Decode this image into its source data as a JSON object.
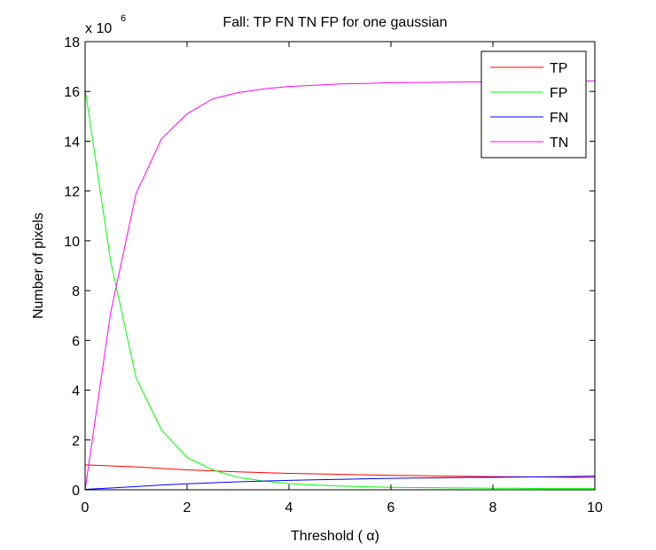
{
  "chart_data": {
    "type": "line",
    "title": "Fall: TP FN TN FP for one gaussian",
    "xlabel": "Threshold ( α)",
    "ylabel": "Number of pixels",
    "y_exponent_label": "x 10",
    "y_exponent_power": "6",
    "xlim": [
      0,
      10
    ],
    "ylim": [
      0,
      18
    ],
    "xticks": [
      0,
      2,
      4,
      6,
      8,
      10
    ],
    "yticks": [
      0,
      2,
      4,
      6,
      8,
      10,
      12,
      14,
      16,
      18
    ],
    "grid": false,
    "legend_position": "top-right",
    "x": [
      0,
      0.5,
      1,
      1.5,
      2,
      2.5,
      3,
      3.5,
      4,
      4.5,
      5,
      5.5,
      6,
      6.5,
      7,
      7.5,
      8,
      8.5,
      9,
      9.5,
      10
    ],
    "series": [
      {
        "name": "TP",
        "color": "#ff0000",
        "values": [
          1.0,
          0.96,
          0.92,
          0.86,
          0.8,
          0.76,
          0.72,
          0.69,
          0.66,
          0.64,
          0.62,
          0.6,
          0.58,
          0.57,
          0.55,
          0.54,
          0.53,
          0.52,
          0.51,
          0.5,
          0.5
        ]
      },
      {
        "name": "FP",
        "color": "#00ff00",
        "values": [
          16.1,
          9.2,
          4.5,
          2.4,
          1.3,
          0.8,
          0.5,
          0.35,
          0.25,
          0.19,
          0.15,
          0.12,
          0.1,
          0.09,
          0.08,
          0.07,
          0.06,
          0.06,
          0.05,
          0.05,
          0.05
        ]
      },
      {
        "name": "FN",
        "color": "#0000ff",
        "values": [
          0.02,
          0.07,
          0.13,
          0.19,
          0.24,
          0.28,
          0.32,
          0.35,
          0.38,
          0.4,
          0.42,
          0.44,
          0.46,
          0.47,
          0.48,
          0.5,
          0.5,
          0.51,
          0.52,
          0.53,
          0.55
        ]
      },
      {
        "name": "TN",
        "color": "#ff00ff",
        "values": [
          0.0,
          7.1,
          11.9,
          14.1,
          15.1,
          15.7,
          15.95,
          16.1,
          16.2,
          16.25,
          16.3,
          16.32,
          16.35,
          16.36,
          16.37,
          16.38,
          16.39,
          16.4,
          16.4,
          16.41,
          16.42
        ]
      }
    ]
  }
}
